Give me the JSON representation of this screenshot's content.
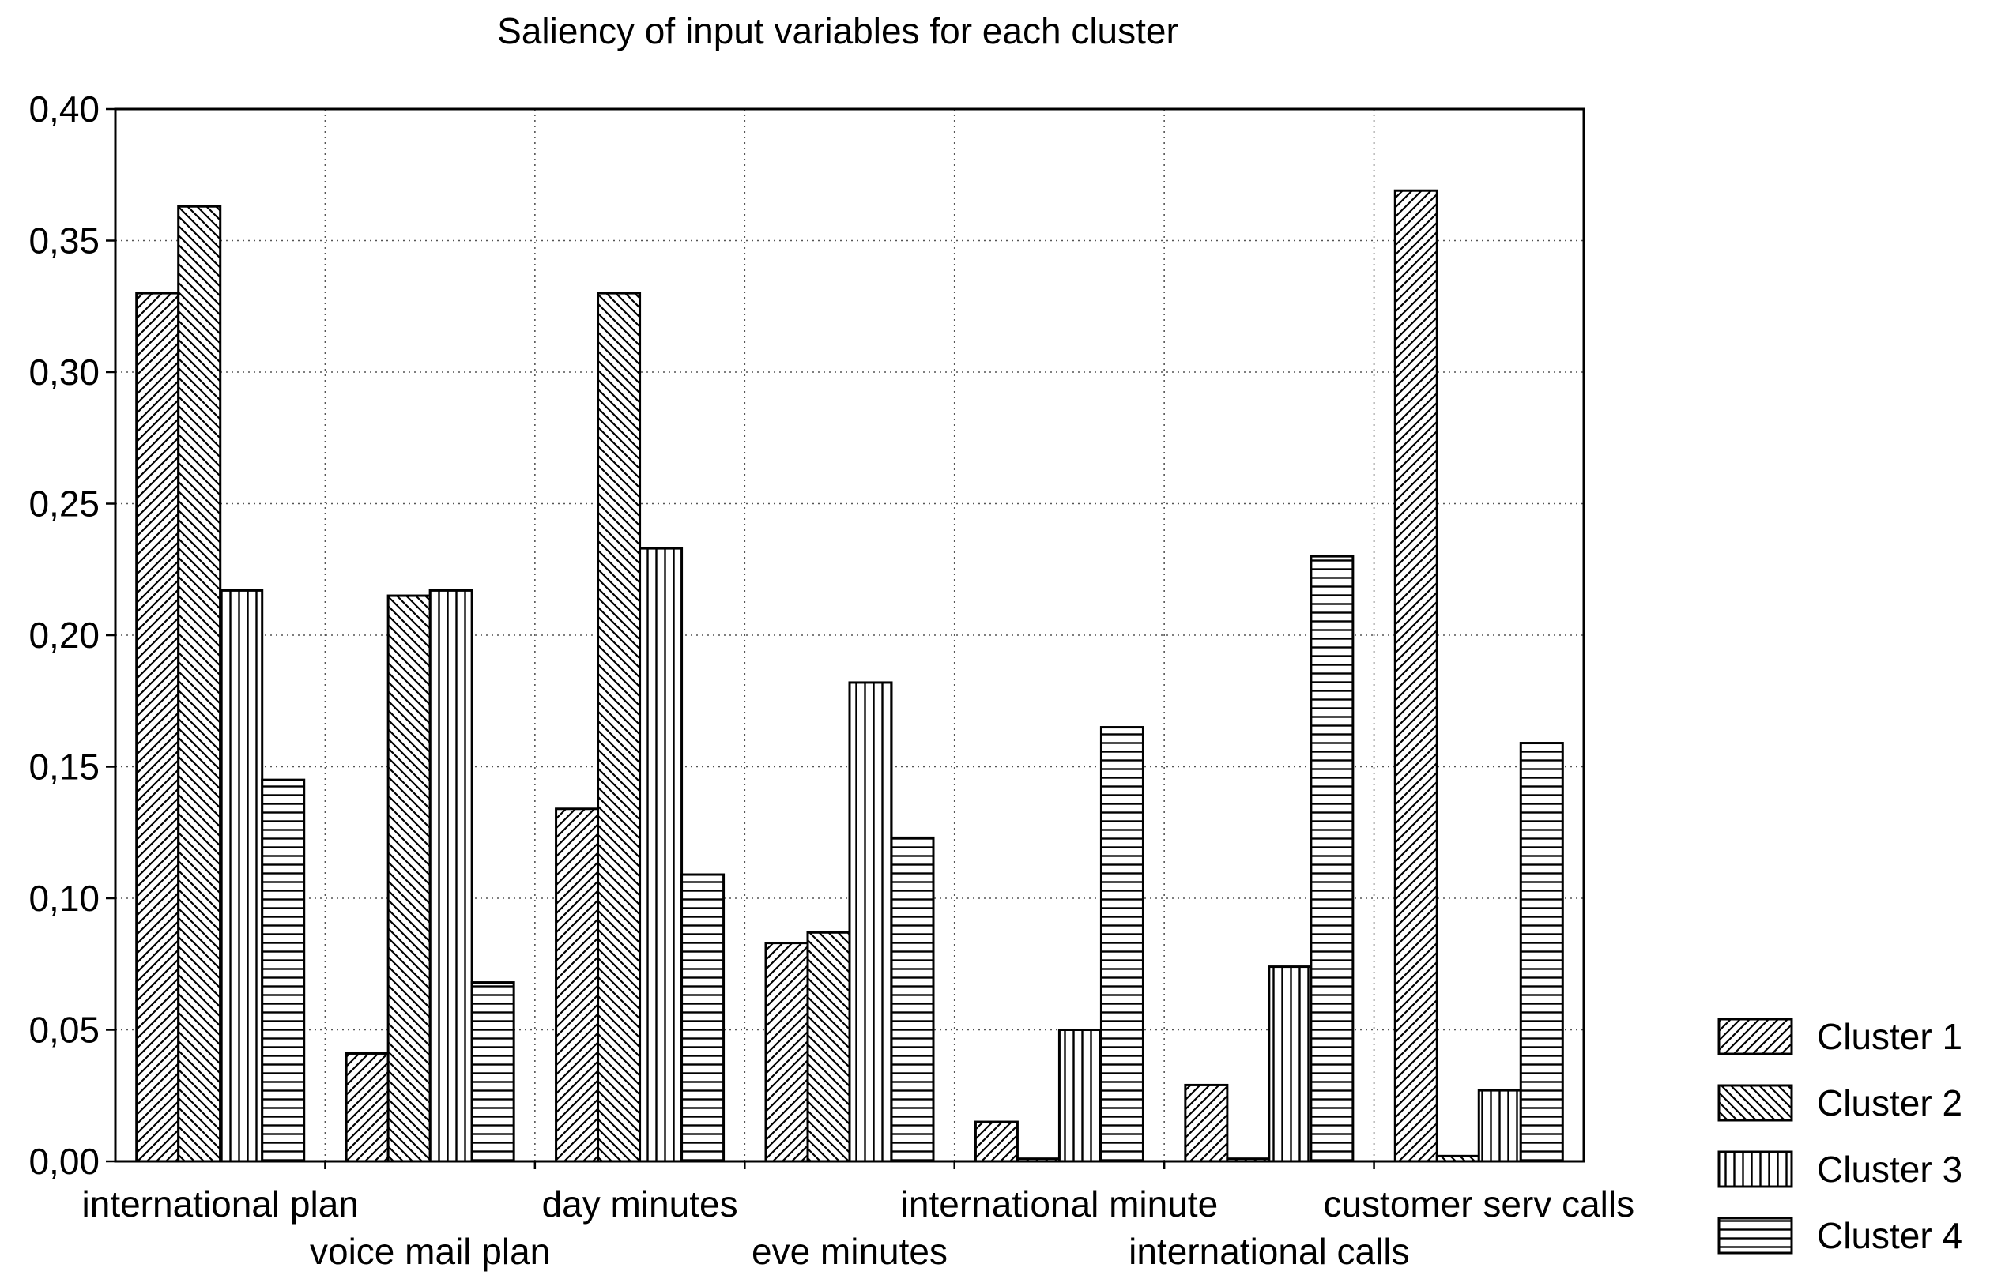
{
  "chart_data": {
    "type": "bar",
    "title": "Saliency of input variables for each cluster",
    "xlabel": "",
    "ylabel": "",
    "ylim": [
      0,
      0.4
    ],
    "yticks": [
      "0,00",
      "0,05",
      "0,10",
      "0,15",
      "0,20",
      "0,25",
      "0,30",
      "0,35",
      "0,40"
    ],
    "grid": true,
    "legend_position": "bottom-right",
    "categories": [
      "international plan",
      "voice mail plan",
      "day minutes",
      "eve minutes",
      "international minute",
      "international calls",
      "customer serv  calls"
    ],
    "series": [
      {
        "name": "Cluster 1",
        "pattern": "diag-right",
        "values": [
          0.33,
          0.041,
          0.134,
          0.083,
          0.015,
          0.029,
          0.369
        ]
      },
      {
        "name": "Cluster 2",
        "pattern": "diag-left",
        "values": [
          0.363,
          0.215,
          0.33,
          0.087,
          0.001,
          0.001,
          0.002
        ]
      },
      {
        "name": "Cluster 3",
        "pattern": "vertical",
        "values": [
          0.217,
          0.217,
          0.233,
          0.182,
          0.05,
          0.074,
          0.027
        ]
      },
      {
        "name": "Cluster 4",
        "pattern": "horizontal",
        "values": [
          0.145,
          0.068,
          0.109,
          0.123,
          0.165,
          0.23,
          0.159
        ]
      }
    ]
  }
}
